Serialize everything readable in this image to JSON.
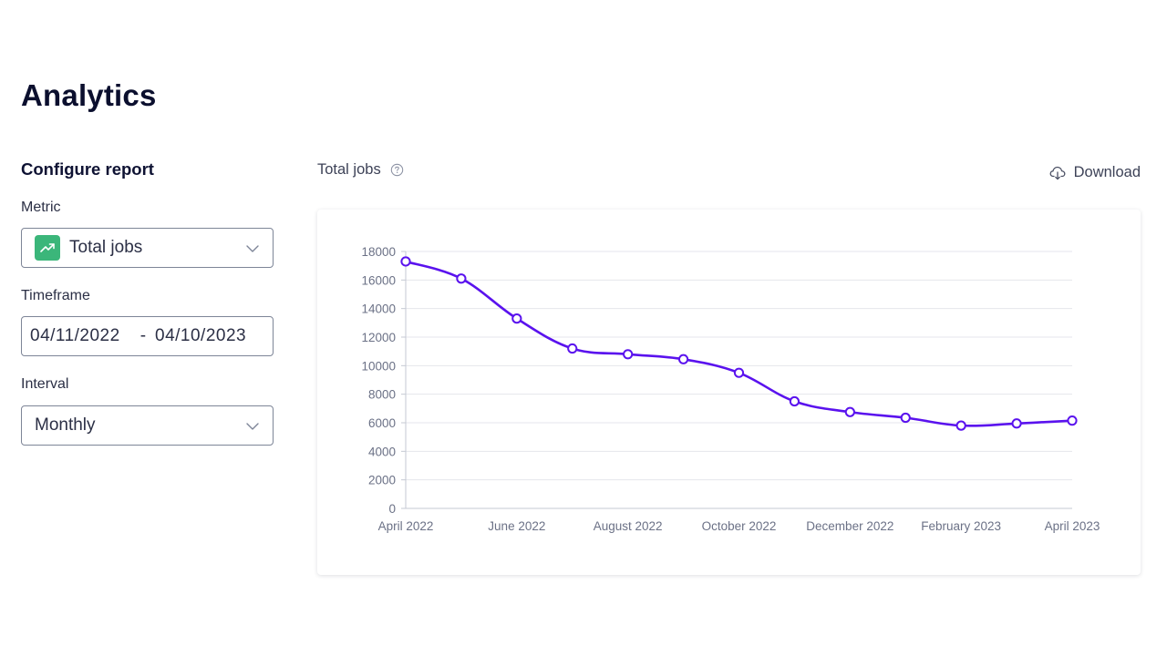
{
  "page": {
    "title": "Analytics"
  },
  "config": {
    "heading": "Configure report",
    "metric": {
      "label": "Metric",
      "value": "Total jobs",
      "icon": "trending-up-icon",
      "icon_color": "#3bb67a"
    },
    "timeframe": {
      "label": "Timeframe",
      "start": "04/11/2022",
      "separator": "-",
      "end": "04/10/2023"
    },
    "interval": {
      "label": "Interval",
      "value": "Monthly"
    }
  },
  "chart_header": {
    "title": "Total jobs",
    "help_icon": "help-circle-icon",
    "download_label": "Download",
    "download_icon": "cloud-download-icon"
  },
  "chart_data": {
    "type": "line",
    "title": "",
    "xlabel": "",
    "ylabel": "",
    "x": [
      "April 2022",
      "May 2022",
      "June 2022",
      "July 2022",
      "August 2022",
      "September 2022",
      "October 2022",
      "November 2022",
      "December 2022",
      "January 2023",
      "February 2023",
      "March 2023",
      "April 2023"
    ],
    "x_tick_labels": [
      "April 2022",
      "June 2022",
      "August 2022",
      "October 2022",
      "December 2022",
      "February 2023",
      "April 2023"
    ],
    "values": [
      17300,
      16100,
      13300,
      11200,
      10800,
      10450,
      9500,
      7500,
      6750,
      6350,
      5800,
      5950,
      6150
    ],
    "ylim": [
      0,
      18000
    ],
    "y_ticks": [
      0,
      2000,
      4000,
      6000,
      8000,
      10000,
      12000,
      14000,
      16000,
      18000
    ],
    "grid": true,
    "legend": "none",
    "line_color": "#5a12ee"
  }
}
